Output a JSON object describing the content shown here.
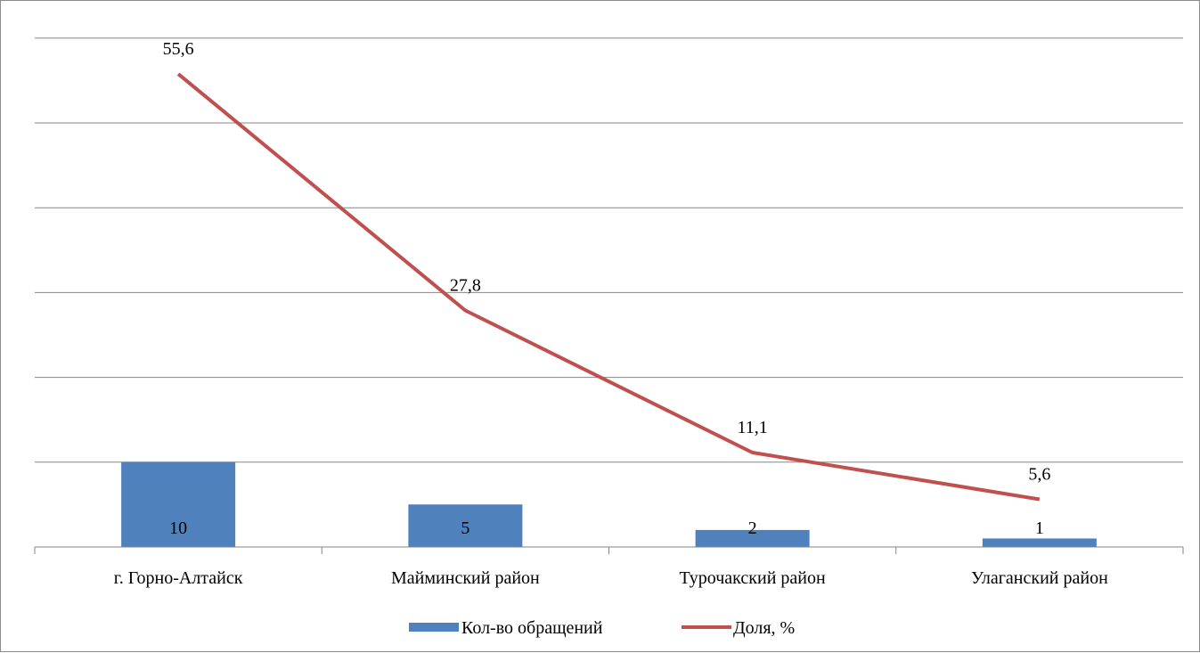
{
  "chart_data": {
    "type": "bar",
    "categories": [
      "г. Горно-Алтайск",
      "Майминский район",
      "Турочакский район",
      "Улаганский район"
    ],
    "series": [
      {
        "name": "Кол-во обращений",
        "type": "bar",
        "values": [
          10,
          5,
          2,
          1
        ],
        "labels": [
          "10",
          "5",
          "2",
          "1"
        ],
        "color": "#4f81bd"
      },
      {
        "name": "Доля, %",
        "type": "line",
        "values": [
          55.6,
          27.8,
          11.1,
          5.6
        ],
        "labels": [
          "55,6",
          "27,8",
          "11,1",
          "5,6"
        ],
        "color": "#c0504d"
      }
    ],
    "bar_ylim": [
      0,
      60
    ],
    "line_ylim": [
      0,
      60
    ],
    "grid": true,
    "legend_position": "bottom"
  }
}
